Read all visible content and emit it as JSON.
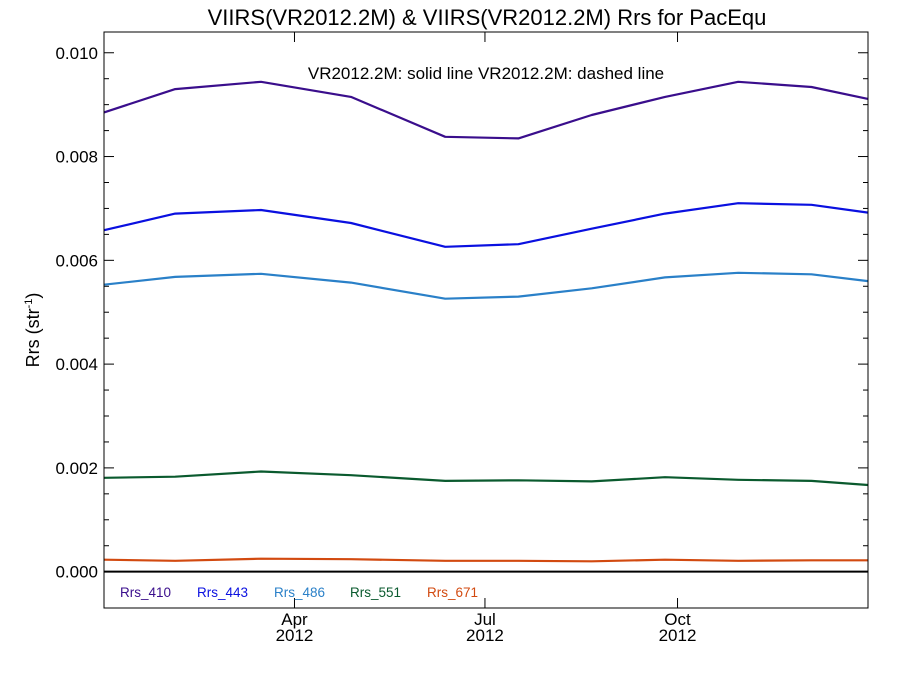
{
  "chart_data": {
    "type": "line",
    "title": "VIIRS(VR2012.2M) & VIIRS(VR2012.2M)  Rrs for PacEqu",
    "ylabel": "Rrs (str",
    "ylabel_sup": "-1",
    "ylabel_close": ")",
    "xlabel": "",
    "annotation": "VR2012.2M: solid line   VR2012.2M: dashed line",
    "xlim": [
      "2012-01-01",
      "2012-12-31"
    ],
    "ylim": [
      -0.0007,
      0.0104
    ],
    "yticks": [
      {
        "value": 0.0,
        "label": "0.000"
      },
      {
        "value": 0.002,
        "label": "0.002"
      },
      {
        "value": 0.004,
        "label": "0.004"
      },
      {
        "value": 0.006,
        "label": "0.006"
      },
      {
        "value": 0.008,
        "label": "0.008"
      },
      {
        "value": 0.01,
        "label": "0.010"
      }
    ],
    "xticks": [
      {
        "date": "2012-04-01",
        "month": "Apr",
        "year": "2012"
      },
      {
        "date": "2012-07-01",
        "month": "Jul",
        "year": "2012"
      },
      {
        "date": "2012-10-01",
        "month": "Oct",
        "year": "2012"
      }
    ],
    "x": [
      "2012-01-01",
      "2012-02-04",
      "2012-03-16",
      "2012-04-28",
      "2012-06-12",
      "2012-07-17",
      "2012-08-21",
      "2012-09-25",
      "2012-10-30",
      "2012-12-04",
      "2012-12-31"
    ],
    "series": [
      {
        "name": "Rrs_410",
        "color": "#3a0e8c",
        "values": [
          0.00885,
          0.0093,
          0.00944,
          0.00915,
          0.00838,
          0.00835,
          0.0088,
          0.00915,
          0.00944,
          0.00934,
          0.00911
        ]
      },
      {
        "name": "Rrs_443",
        "color": "#0a10e0",
        "values": [
          0.00658,
          0.0069,
          0.00697,
          0.00672,
          0.00626,
          0.00631,
          0.00661,
          0.0069,
          0.0071,
          0.00707,
          0.00692
        ]
      },
      {
        "name": "Rrs_486",
        "color": "#2a80c8",
        "values": [
          0.00553,
          0.00568,
          0.00574,
          0.00557,
          0.00526,
          0.0053,
          0.00546,
          0.00567,
          0.00576,
          0.00573,
          0.0056
        ]
      },
      {
        "name": "Rrs_551",
        "color": "#0a5a2e",
        "values": [
          0.00181,
          0.00183,
          0.00193,
          0.00186,
          0.00175,
          0.00176,
          0.00174,
          0.00182,
          0.00177,
          0.00175,
          0.00167
        ]
      },
      {
        "name": "Rrs_671",
        "color": "#d24a10",
        "values": [
          0.00023,
          0.00021,
          0.00025,
          0.00024,
          0.00021,
          0.00021,
          0.0002,
          0.00023,
          0.00021,
          0.00022,
          0.00022
        ]
      }
    ],
    "zero_line": true,
    "grid": false,
    "legend_position": "bottom-left"
  }
}
